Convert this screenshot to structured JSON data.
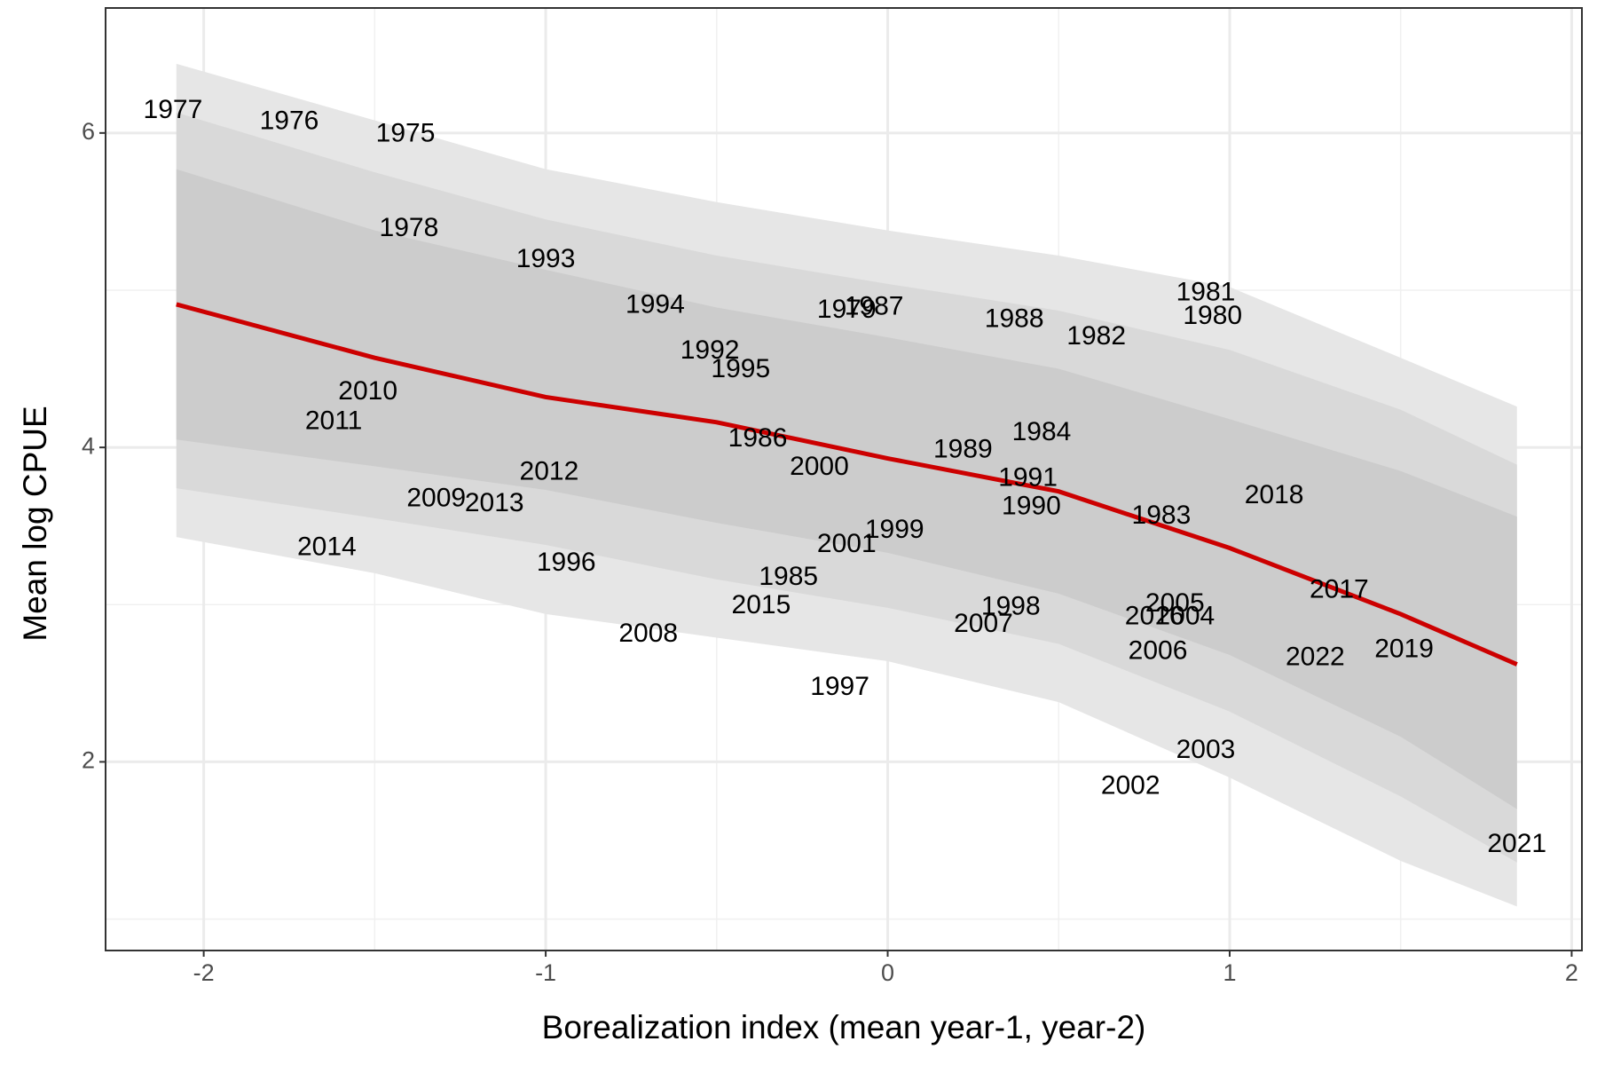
{
  "chart_data": {
    "type": "scatter",
    "x_label": "Borealization index (mean year-1, year-2)",
    "y_label": "Mean log CPUE",
    "xlim": [
      -2.287,
      2.03
    ],
    "ylim": [
      0.8,
      6.795
    ],
    "xticks": [
      -2,
      -1,
      0,
      1,
      2
    ],
    "yticks": [
      2,
      4,
      6
    ],
    "x_minor_grid": [
      -1.5,
      -0.5,
      0.5,
      1.5
    ],
    "y_minor_grid": [
      1,
      3,
      5
    ],
    "grid": true,
    "points": {
      "labels": [
        "1977",
        "1976",
        "1975",
        "1978",
        "1993",
        "1994",
        "1979",
        "1987",
        "1988",
        "1982",
        "1981",
        "1980",
        "1992",
        "1995",
        "2010",
        "2011",
        "1986",
        "2000",
        "1989",
        "1984",
        "1991",
        "1990",
        "1983",
        "2018",
        "2012",
        "2009",
        "2013",
        "2014",
        "1999",
        "2001",
        "1996",
        "1985",
        "2015",
        "2008",
        "1998",
        "2007",
        "2005",
        "2016",
        "2004",
        "2006",
        "2017",
        "2022",
        "2019",
        "1997",
        "2003",
        "2002",
        "2021"
      ],
      "x": [
        -2.09,
        -1.75,
        -1.41,
        -1.4,
        -1.0,
        -0.68,
        -0.12,
        -0.04,
        0.37,
        0.61,
        0.93,
        0.95,
        -0.52,
        -0.43,
        -1.52,
        -1.62,
        -0.38,
        -0.2,
        0.22,
        0.45,
        0.41,
        0.42,
        0.8,
        1.13,
        -0.99,
        -1.32,
        -1.15,
        -1.64,
        0.02,
        -0.12,
        -0.94,
        -0.29,
        -0.37,
        -0.7,
        0.36,
        0.28,
        0.84,
        0.78,
        0.87,
        0.79,
        1.32,
        1.25,
        1.51,
        -0.14,
        0.93,
        0.71,
        1.84
      ],
      "y": [
        6.14,
        6.07,
        5.99,
        5.39,
        5.19,
        4.9,
        4.87,
        4.89,
        4.81,
        4.7,
        4.98,
        4.83,
        4.61,
        4.49,
        4.35,
        4.16,
        4.05,
        3.87,
        3.98,
        4.09,
        3.8,
        3.62,
        3.56,
        3.69,
        3.84,
        3.67,
        3.64,
        3.36,
        3.47,
        3.38,
        3.26,
        3.17,
        2.99,
        2.81,
        2.98,
        2.87,
        3.0,
        2.92,
        2.92,
        2.7,
        3.09,
        2.66,
        2.71,
        2.47,
        2.07,
        1.84,
        1.47
      ],
      "color": "#000000"
    },
    "fit": {
      "x": [
        -2.08,
        -1.5,
        -1,
        -0.5,
        0,
        0.5,
        1,
        1.5,
        1.84
      ],
      "y": [
        4.91,
        4.57,
        4.32,
        4.16,
        3.93,
        3.72,
        3.36,
        2.94,
        2.62
      ],
      "color": "#cc0000",
      "bands": [
        {
          "color": "#e6e6e6",
          "upper": [
            6.44,
            6.08,
            5.77,
            5.56,
            5.38,
            5.22,
            5.02,
            4.57,
            4.26
          ],
          "lower": [
            3.43,
            3.2,
            2.94,
            2.79,
            2.64,
            2.38,
            1.9,
            1.37,
            1.08
          ]
        },
        {
          "color": "#d9d9d9",
          "upper": [
            6.13,
            5.75,
            5.45,
            5.22,
            5.04,
            4.87,
            4.62,
            4.24,
            3.89
          ],
          "lower": [
            3.74,
            3.55,
            3.38,
            3.16,
            2.98,
            2.75,
            2.32,
            1.78,
            1.36
          ]
        },
        {
          "color": "#cccccc",
          "upper": [
            5.77,
            5.38,
            5.13,
            4.89,
            4.7,
            4.5,
            4.18,
            3.85,
            3.56
          ],
          "lower": [
            4.05,
            3.88,
            3.73,
            3.52,
            3.33,
            3.07,
            2.68,
            2.16,
            1.7
          ]
        }
      ]
    }
  }
}
